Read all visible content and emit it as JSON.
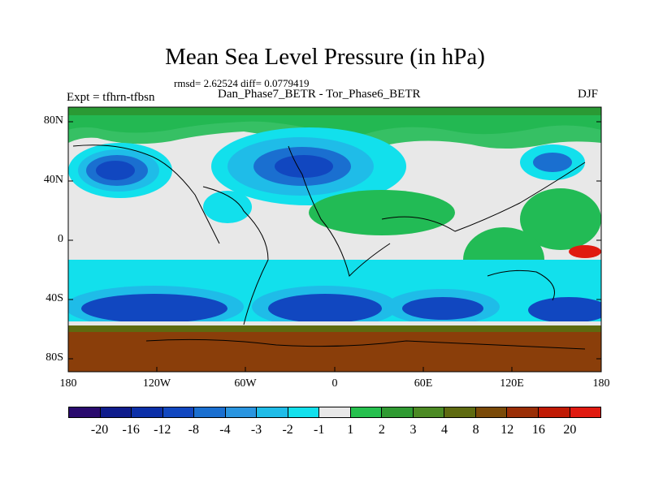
{
  "title": "Mean Sea Level Pressure (in hPa)",
  "stats": "rmsd= 2.62524 diff= 0.0779419",
  "subtitle": "Dan_Phase7_BETR - Tor_Phase6_BETR",
  "left_label": "Expt = tfhrn-tfbsn",
  "right_label": "DJF",
  "lat_ticks": [
    "80N",
    "40N",
    "0",
    "40S",
    "80S"
  ],
  "lon_ticks": [
    "180",
    "120W",
    "60W",
    "0",
    "60E",
    "120E",
    "180"
  ],
  "colorbar": {
    "colors": [
      "#2a0a6e",
      "#0f1c8c",
      "#0b2fa8",
      "#1147c0",
      "#1a6fd0",
      "#2a95e0",
      "#1fbce8",
      "#12e0ec",
      "#e8e8e8",
      "#26c04e",
      "#2f9a32",
      "#4c8a24",
      "#5e6a10",
      "#7a4a08",
      "#9a2e06",
      "#c01a04",
      "#e01a10"
    ],
    "labels": [
      "-20",
      "-16",
      "-12",
      "-8",
      "-4",
      "-3",
      "-2",
      "-1",
      "1",
      "2",
      "3",
      "4",
      "8",
      "12",
      "16",
      "20"
    ]
  },
  "map_colors": {
    "background": "#e8e8e8",
    "antarctic": "#8a3e0a",
    "arctic_green": "#22bb55",
    "coast": "#000000"
  }
}
